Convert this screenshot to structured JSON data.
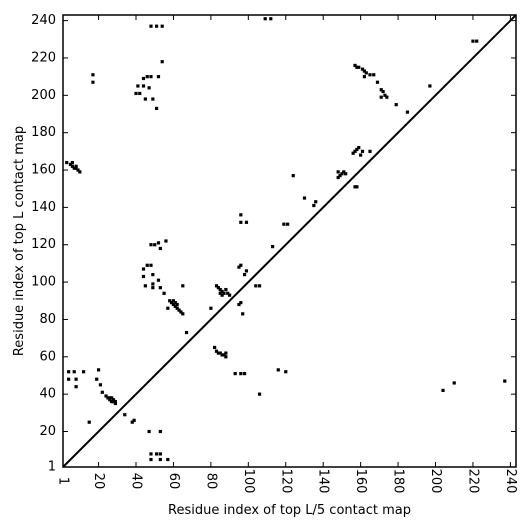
{
  "chart_data": {
    "type": "scatter",
    "xlabel": "Residue index of top L/5 contact map",
    "ylabel": "Residue index of top L contact map",
    "xlim": [
      1,
      243
    ],
    "ylim": [
      1,
      243
    ],
    "xticks": [
      1,
      20,
      40,
      60,
      80,
      100,
      120,
      140,
      160,
      180,
      200,
      220,
      240
    ],
    "yticks": [
      1,
      20,
      40,
      60,
      80,
      100,
      120,
      140,
      160,
      180,
      200,
      220,
      240
    ],
    "diagonal": true,
    "grid": false,
    "marker_color": "#000000",
    "series": [
      {
        "points": [
          [
            19,
            48
          ],
          [
            20,
            53
          ],
          [
            21,
            45
          ],
          [
            22,
            41
          ],
          [
            24,
            39
          ],
          [
            25,
            38
          ],
          [
            26,
            37
          ],
          [
            27,
            36
          ],
          [
            28,
            36
          ],
          [
            29,
            35
          ],
          [
            28,
            37
          ],
          [
            27,
            38
          ],
          [
            26,
            38
          ],
          [
            29,
            36
          ],
          [
            34,
            29
          ],
          [
            38,
            25
          ],
          [
            39,
            26
          ],
          [
            15,
            25
          ],
          [
            47,
            20
          ],
          [
            53,
            20
          ],
          [
            48,
            8
          ],
          [
            51,
            8
          ],
          [
            53,
            8
          ],
          [
            48,
            5
          ],
          [
            53,
            5
          ],
          [
            57,
            5
          ],
          [
            45,
            98
          ],
          [
            49,
            97
          ],
          [
            49,
            99
          ],
          [
            53,
            97
          ],
          [
            55,
            94
          ],
          [
            58,
            90
          ],
          [
            59,
            89
          ],
          [
            60,
            88
          ],
          [
            61,
            87
          ],
          [
            62,
            86
          ],
          [
            63,
            85
          ],
          [
            64,
            84
          ],
          [
            65,
            83
          ],
          [
            62,
            88
          ],
          [
            65,
            98
          ],
          [
            67,
            73
          ],
          [
            57,
            86
          ],
          [
            60,
            90
          ],
          [
            61,
            89
          ],
          [
            44,
            107
          ],
          [
            44,
            103
          ],
          [
            46,
            109
          ],
          [
            48,
            109
          ],
          [
            49,
            104
          ],
          [
            52,
            101
          ],
          [
            52,
            121
          ],
          [
            53,
            118
          ],
          [
            56,
            122
          ],
          [
            48,
            120
          ],
          [
            50,
            120
          ],
          [
            42,
            201
          ],
          [
            40,
            201
          ],
          [
            41,
            205
          ],
          [
            44,
            205
          ],
          [
            47,
            204
          ],
          [
            49,
            198
          ],
          [
            45,
            198
          ],
          [
            51,
            193
          ],
          [
            44,
            209
          ],
          [
            46,
            210
          ],
          [
            48,
            210
          ],
          [
            52,
            210
          ],
          [
            54,
            218
          ],
          [
            3,
            164
          ],
          [
            5,
            163
          ],
          [
            6,
            162
          ],
          [
            7,
            161
          ],
          [
            8,
            161
          ],
          [
            9,
            160
          ],
          [
            10,
            159
          ],
          [
            6,
            164
          ],
          [
            8,
            162
          ],
          [
            4,
            52
          ],
          [
            4,
            48
          ],
          [
            8,
            48
          ],
          [
            8,
            44
          ],
          [
            7,
            52
          ],
          [
            12,
            52
          ],
          [
            17,
            207
          ],
          [
            17,
            211
          ],
          [
            48,
            237
          ],
          [
            51,
            237
          ],
          [
            54,
            237
          ],
          [
            82,
            65
          ],
          [
            83,
            63
          ],
          [
            84,
            62
          ],
          [
            85,
            62
          ],
          [
            86,
            61
          ],
          [
            87,
            61
          ],
          [
            88,
            60
          ],
          [
            88,
            62
          ],
          [
            80,
            86
          ],
          [
            83,
            98
          ],
          [
            84,
            97
          ],
          [
            85,
            96
          ],
          [
            86,
            95
          ],
          [
            87,
            94
          ],
          [
            86,
            93
          ],
          [
            85,
            94
          ],
          [
            88,
            96
          ],
          [
            89,
            94
          ],
          [
            90,
            93
          ],
          [
            95,
            88
          ],
          [
            96,
            89
          ],
          [
            97,
            83
          ],
          [
            98,
            104
          ],
          [
            99,
            106
          ],
          [
            95,
            108
          ],
          [
            96,
            109
          ],
          [
            96,
            132
          ],
          [
            96,
            136
          ],
          [
            99,
            132
          ],
          [
            104,
            98
          ],
          [
            106,
            98
          ],
          [
            93,
            51
          ],
          [
            96,
            51
          ],
          [
            98,
            51
          ],
          [
            116,
            53
          ],
          [
            120,
            52
          ],
          [
            113,
            119
          ],
          [
            119,
            131
          ],
          [
            121,
            131
          ],
          [
            124,
            157
          ],
          [
            130,
            145
          ],
          [
            135,
            141
          ],
          [
            136,
            143
          ],
          [
            106,
            40
          ],
          [
            148,
            156
          ],
          [
            149,
            157
          ],
          [
            150,
            158
          ],
          [
            151,
            159
          ],
          [
            152,
            158
          ],
          [
            148,
            159
          ],
          [
            156,
            169
          ],
          [
            157,
            170
          ],
          [
            158,
            171
          ],
          [
            159,
            172
          ],
          [
            160,
            168
          ],
          [
            157,
            151
          ],
          [
            158,
            151
          ],
          [
            161,
            170
          ],
          [
            165,
            170
          ],
          [
            157,
            216
          ],
          [
            158,
            215
          ],
          [
            159,
            215
          ],
          [
            161,
            214
          ],
          [
            162,
            213
          ],
          [
            163,
            212
          ],
          [
            162,
            210
          ],
          [
            165,
            211
          ],
          [
            167,
            211
          ],
          [
            169,
            207
          ],
          [
            171,
            203
          ],
          [
            172,
            202
          ],
          [
            173,
            200
          ],
          [
            171,
            199
          ],
          [
            174,
            199
          ],
          [
            179,
            195
          ],
          [
            185,
            191
          ],
          [
            197,
            205
          ],
          [
            204,
            42
          ],
          [
            210,
            46
          ],
          [
            237,
            47
          ],
          [
            109,
            241
          ],
          [
            112,
            241
          ],
          [
            220,
            229
          ],
          [
            222,
            229
          ]
        ]
      }
    ]
  }
}
